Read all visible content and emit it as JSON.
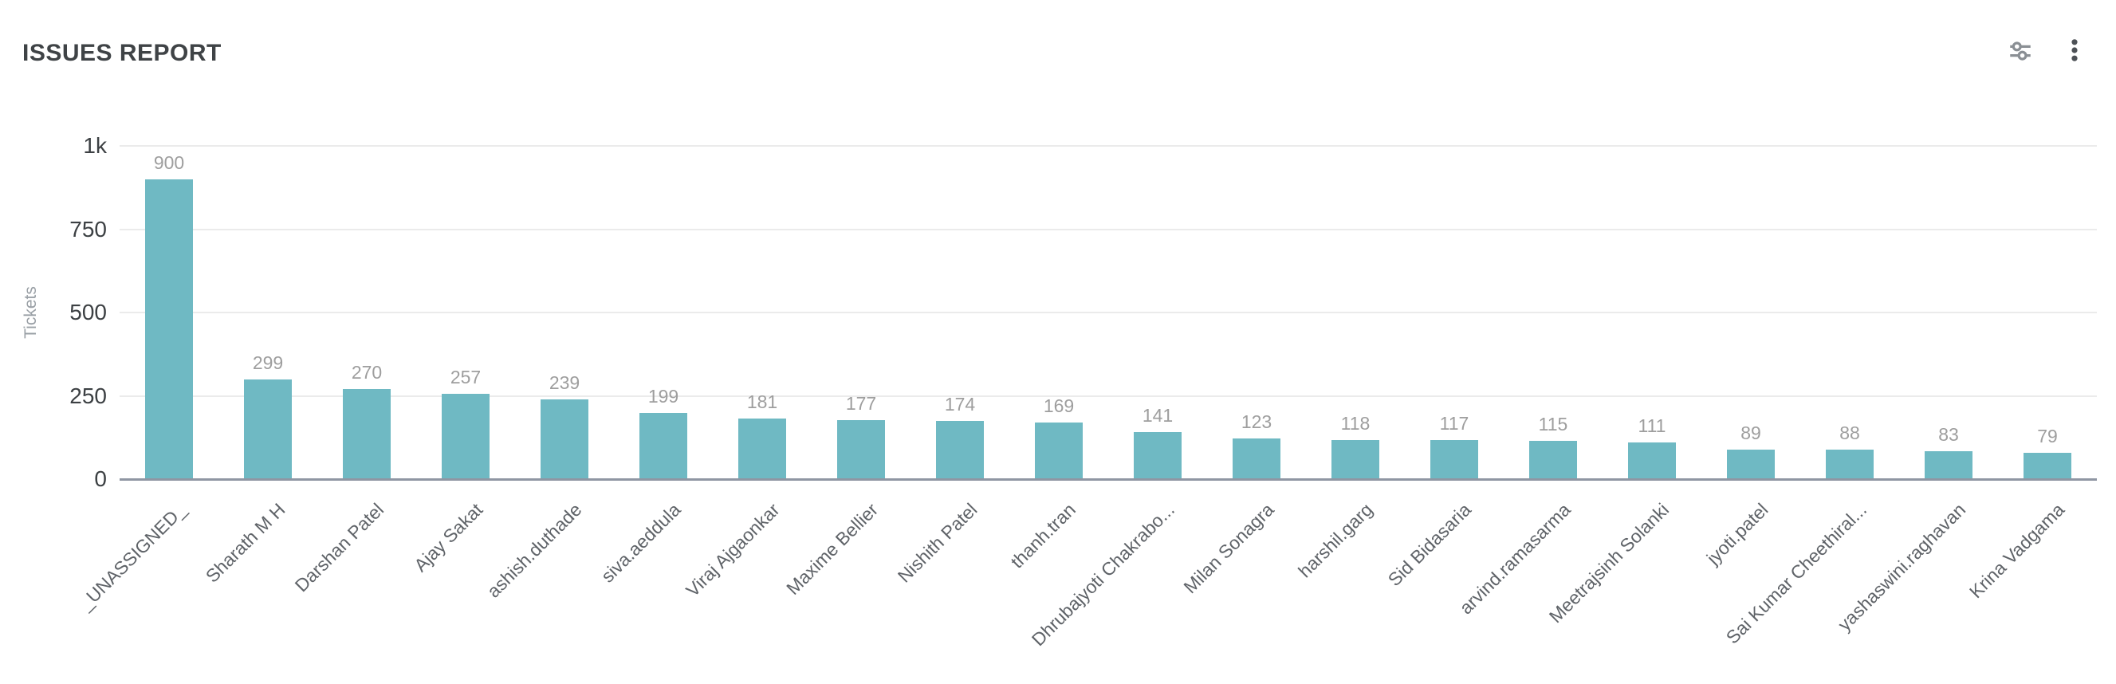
{
  "header": {
    "title": "ISSUES REPORT",
    "icons": [
      {
        "name": "filter-settings-icon"
      },
      {
        "name": "more-options-icon"
      }
    ]
  },
  "colors": {
    "title": "#3f4346",
    "bar": "#6fb9c3",
    "value_label": "#9e9e9e",
    "category_label": "#5f6368",
    "tick_label": "#3c4043",
    "axis_title": "#9aa0a6",
    "gridline": "#ebebeb",
    "axis_line": "#8f96a3",
    "tune_icon": "#8a8f94",
    "more_icon": "#4d5156"
  },
  "chart_data": {
    "type": "bar",
    "title": "ISSUES REPORT",
    "xlabel": "",
    "ylabel": "Tickets",
    "ylim": [
      0,
      1000
    ],
    "grid": true,
    "legend_position": "none",
    "bar_color": "#6fb9c3",
    "value_labels_shown": true,
    "y_ticks": [
      {
        "label": "0",
        "value": 0
      },
      {
        "label": "250",
        "value": 250
      },
      {
        "label": "500",
        "value": 500
      },
      {
        "label": "750",
        "value": 750
      },
      {
        "label": "1k",
        "value": 1000
      }
    ],
    "categories": [
      "_UNASSIGNED_",
      "Sharath M H",
      "Darshan Patel",
      "Ajay Sakat",
      "ashish.duthade",
      "siva.aeddula",
      "Viraj Ajgaonkar",
      "Maxime Bellier",
      "Nishith Patel",
      "thanh.tran",
      "Dhrubajyoti Chakrabo...",
      "Milan Sonagra",
      "harshil.garg",
      "Sid Bidasaria",
      "arvind.ramasarma",
      "Meetrajsinh Solanki",
      "jyoti.patel",
      "Sai Kumar Cheethiral...",
      "yashaswini.raghavan",
      "Krina Vadgama"
    ],
    "values": [
      900,
      299,
      270,
      257,
      239,
      199,
      181,
      177,
      174,
      169,
      141,
      123,
      118,
      117,
      115,
      111,
      89,
      88,
      83,
      79
    ]
  }
}
